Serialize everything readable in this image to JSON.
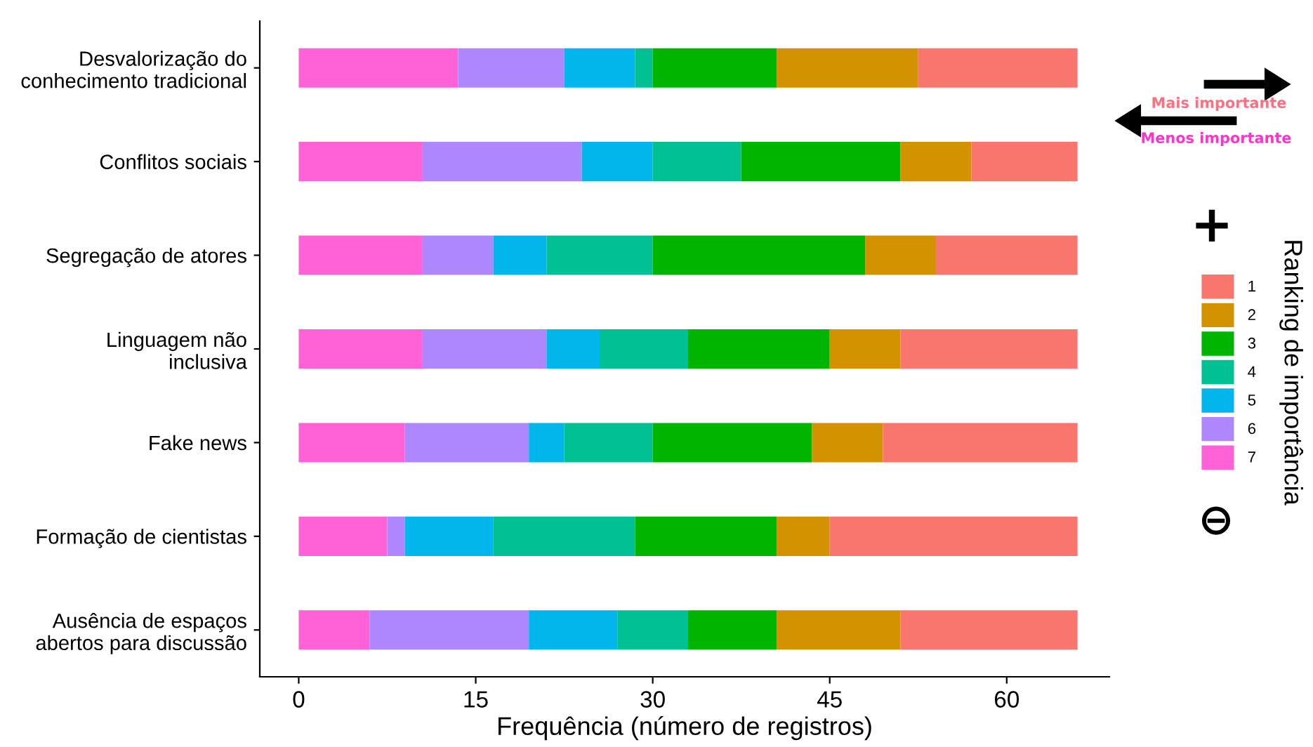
{
  "chart_data": {
    "type": "bar",
    "orientation": "horizontal",
    "stacked": true,
    "categories": [
      "Desvalorização do\nconhecimento tradicional",
      "Conflitos sociais",
      "Segregação de atores",
      "Linguagem não\ninclusiva",
      "Fake news",
      "Formação de cientistas",
      "Ausência de espaços\nabertos para discussão"
    ],
    "series": [
      {
        "name": "7",
        "color": "#ff61d7",
        "values": [
          13.5,
          10.5,
          10.5,
          10.5,
          9,
          7.5,
          6
        ]
      },
      {
        "name": "6",
        "color": "#ae87ff",
        "values": [
          9,
          13.5,
          6,
          10.5,
          10.5,
          1.5,
          13.5
        ]
      },
      {
        "name": "5",
        "color": "#00b6eb",
        "values": [
          6,
          6,
          4.5,
          4.5,
          3,
          7.5,
          7.5
        ]
      },
      {
        "name": "4",
        "color": "#00c094",
        "values": [
          1.5,
          7.5,
          9,
          7.5,
          7.5,
          12,
          6
        ]
      },
      {
        "name": "3",
        "color": "#00b400",
        "values": [
          10.5,
          13.5,
          18,
          12,
          13.5,
          12,
          7.5
        ]
      },
      {
        "name": "2",
        "color": "#d39200",
        "values": [
          12,
          6,
          6,
          6,
          6,
          4.5,
          10.5
        ]
      },
      {
        "name": "1",
        "color": "#f8766d",
        "values": [
          13.5,
          9,
          12,
          15,
          16.5,
          21,
          15
        ]
      }
    ],
    "xlabel": "Frequência (número de registros)",
    "legend_title": "Ranking de importância",
    "legend": "right",
    "xlim": [
      -3.3,
      68.7
    ],
    "xticks": [
      0,
      15,
      30,
      45,
      60
    ],
    "grid": false,
    "annotations": [
      "Mais importante",
      "Menos importante",
      "+",
      "⊖"
    ]
  }
}
